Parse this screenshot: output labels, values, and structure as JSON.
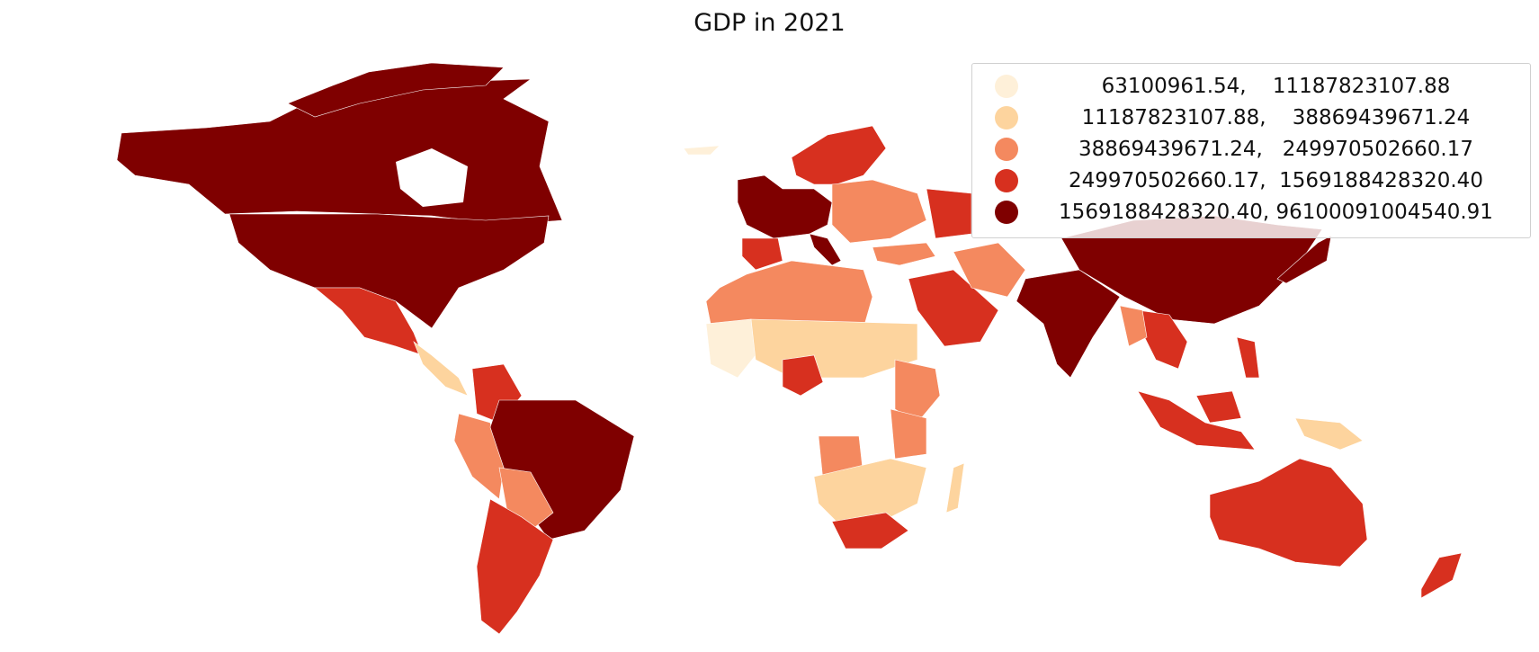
{
  "title": "GDP in 2021",
  "colors": {
    "c0": "#fef0d9",
    "c1": "#fdd49e",
    "c2": "#f4895f",
    "c3": "#d7301f",
    "c4": "#7f0000"
  },
  "legend": {
    "placement": "top-right",
    "entries": [
      {
        "label": "63100961.54,    11187823107.88",
        "color": "#fef0d9"
      },
      {
        "label": "11187823107.88,    38869439671.24",
        "color": "#fdd49e"
      },
      {
        "label": "38869439671.24,   249970502660.17",
        "color": "#f4895f"
      },
      {
        "label": "249970502660.17,  1569188428320.40",
        "color": "#d7301f"
      },
      {
        "label": "1569188428320.40, 96100091004540.91",
        "color": "#7f0000"
      }
    ]
  }
}
